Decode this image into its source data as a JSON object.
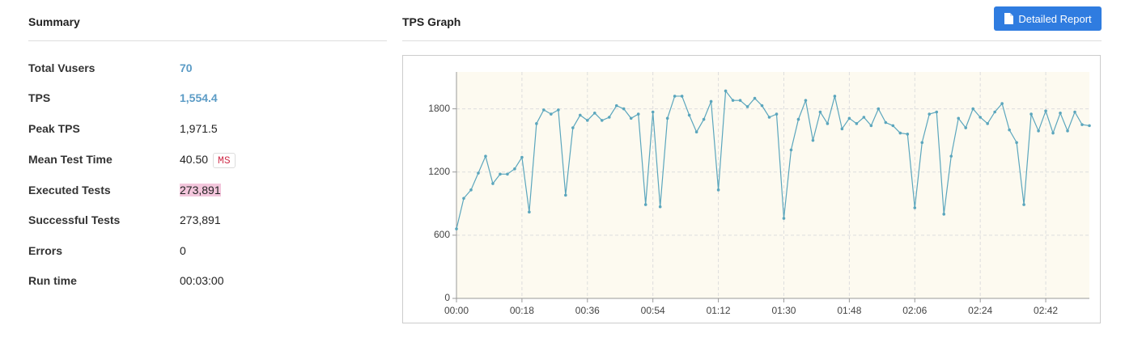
{
  "summary": {
    "title": "Summary",
    "rows": [
      {
        "label": "Total Vusers",
        "value": "70"
      },
      {
        "label": "TPS",
        "value": "1,554.4"
      },
      {
        "label": "Peak TPS",
        "value": "1,971.5"
      },
      {
        "label": "Mean Test Time",
        "value": "40.50",
        "unit": "MS"
      },
      {
        "label": "Executed Tests",
        "value": "273,891"
      },
      {
        "label": "Successful Tests",
        "value": "273,891"
      },
      {
        "label": "Errors",
        "value": "0"
      },
      {
        "label": "Run time",
        "value": "00:03:00"
      }
    ]
  },
  "graph": {
    "title": "TPS Graph",
    "button": "Detailed Report"
  },
  "chart_data": {
    "type": "line",
    "color": "#5ba6bd",
    "grid": true,
    "x": [
      0,
      2,
      4,
      6,
      8,
      10,
      12,
      14,
      16,
      18,
      20,
      22,
      24,
      26,
      28,
      30,
      32,
      34,
      36,
      38,
      40,
      42,
      44,
      46,
      48,
      50,
      52,
      54,
      56,
      58,
      60,
      62,
      64,
      66,
      68,
      70,
      72,
      74,
      76,
      78,
      80,
      82,
      84,
      86,
      88,
      90,
      92,
      94,
      96,
      98,
      100,
      102,
      104,
      106,
      108,
      110,
      112,
      114,
      116,
      118,
      120,
      122,
      124,
      126,
      128,
      130,
      132,
      134,
      136,
      138,
      140,
      142,
      144,
      146,
      148,
      150,
      152,
      154,
      156,
      158,
      160,
      162,
      164,
      166,
      168,
      170,
      172,
      174
    ],
    "values": [
      660,
      950,
      1030,
      1190,
      1350,
      1090,
      1180,
      1180,
      1230,
      1340,
      820,
      1660,
      1790,
      1750,
      1790,
      980,
      1620,
      1740,
      1690,
      1760,
      1690,
      1720,
      1830,
      1800,
      1710,
      1750,
      890,
      1770,
      870,
      1710,
      1920,
      1920,
      1740,
      1580,
      1700,
      1870,
      1030,
      1970,
      1880,
      1880,
      1820,
      1900,
      1830,
      1720,
      1750,
      760,
      1410,
      1700,
      1880,
      1500,
      1770,
      1660,
      1920,
      1610,
      1710,
      1660,
      1720,
      1640,
      1800,
      1670,
      1640,
      1570,
      1560,
      860,
      1480,
      1750,
      1770,
      800,
      1350,
      1710,
      1620,
      1800,
      1720,
      1660,
      1770,
      1850,
      1600,
      1480,
      890,
      1750,
      1590,
      1780,
      1570,
      1760,
      1590,
      1770,
      1650,
      1640
    ],
    "xlim": [
      0,
      174
    ],
    "xticks": [
      {
        "value": 0,
        "label": "00:00"
      },
      {
        "value": 18,
        "label": "00:18"
      },
      {
        "value": 36,
        "label": "00:36"
      },
      {
        "value": 54,
        "label": "00:54"
      },
      {
        "value": 72,
        "label": "01:12"
      },
      {
        "value": 90,
        "label": "01:30"
      },
      {
        "value": 108,
        "label": "01:48"
      },
      {
        "value": 126,
        "label": "02:06"
      },
      {
        "value": 144,
        "label": "02:24"
      },
      {
        "value": 162,
        "label": "02:42"
      }
    ],
    "ylim": [
      0,
      2150
    ],
    "yticks": [
      0,
      600,
      1200,
      1800
    ]
  }
}
